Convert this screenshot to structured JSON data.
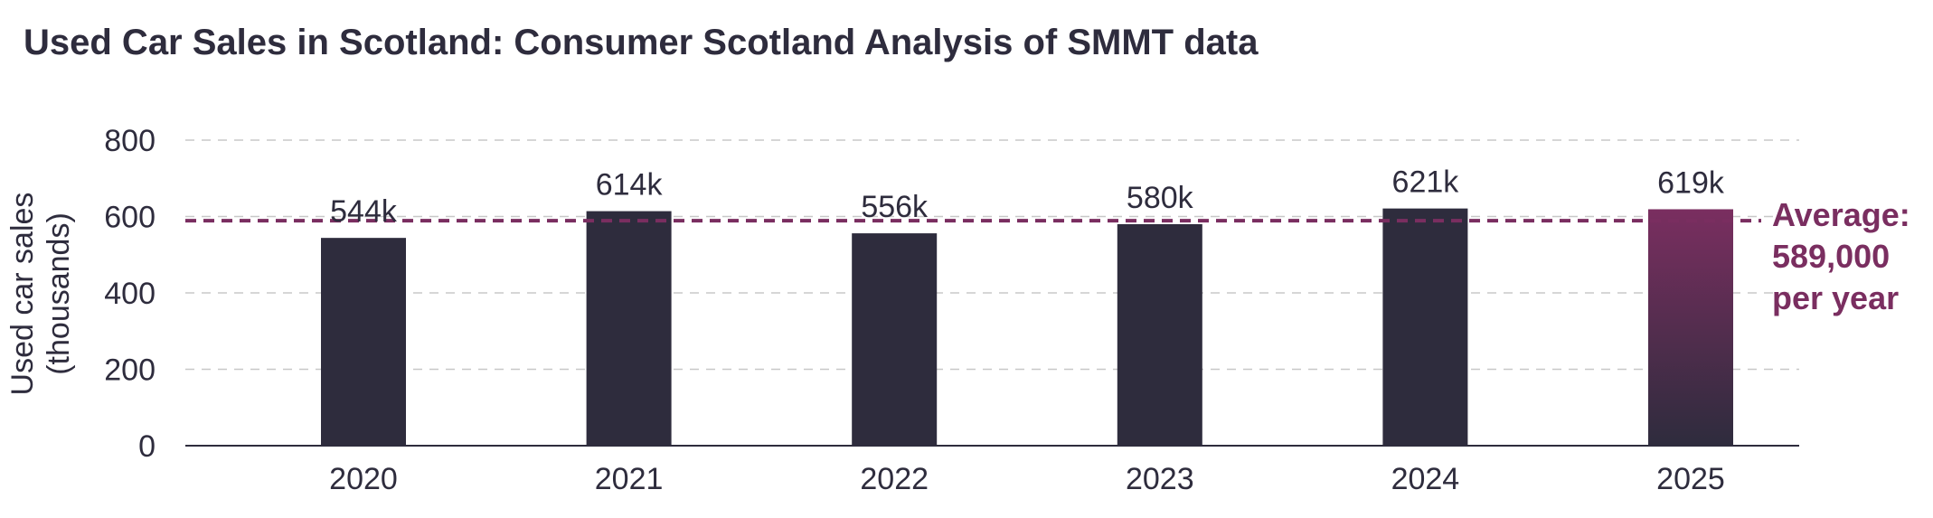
{
  "chart_data": {
    "type": "bar",
    "title": "Used Car Sales in Scotland: Consumer Scotland Analysis of SMMT data",
    "ylabel_lines": [
      "Used car sales",
      "(thousands)"
    ],
    "xlabel": "",
    "categories": [
      "2020",
      "2021",
      "2022",
      "2023",
      "2024",
      "2025"
    ],
    "values": [
      544,
      614,
      556,
      580,
      621,
      619
    ],
    "data_labels": [
      "544k",
      "614k",
      "556k",
      "580k",
      "621k",
      "619k"
    ],
    "ylim": [
      0,
      800
    ],
    "yticks": [
      0,
      200,
      400,
      600,
      800
    ],
    "ytick_labels": [
      "0",
      "200",
      "400",
      "600",
      "800"
    ],
    "grid": true,
    "average": {
      "value": 589,
      "label_lines": [
        "Average:",
        "589,000",
        "per year"
      ]
    },
    "highlight_index": 5,
    "colors": {
      "bar": "#2e2c3d",
      "highlight_top": "#7a2e60",
      "highlight_bottom": "#2e2c3d",
      "average": "#7a2e60",
      "grid": "#c8c8c8",
      "axis": "#2e2c3d",
      "text": "#2e2c3d"
    }
  }
}
